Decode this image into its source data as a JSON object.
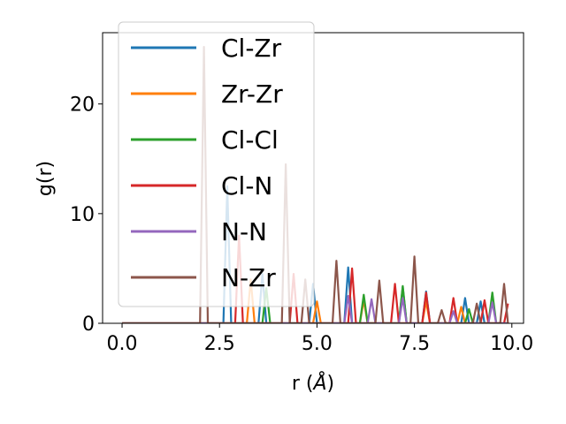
{
  "chart_data": {
    "type": "line",
    "xlabel": "r (Å)",
    "ylabel": "g(r)",
    "xlim": [
      -0.5,
      10.3
    ],
    "ylim": [
      0,
      26.5
    ],
    "xticks": [
      "0.0",
      "2.5",
      "5.0",
      "7.5",
      "10.0"
    ],
    "yticks": [
      "0",
      "10",
      "20"
    ],
    "legend_position": "upper-left",
    "grid": false,
    "series": [
      {
        "name": "Cl-Zr",
        "color": "#1f77b4",
        "x": [
          0,
          2.6,
          2.7,
          2.8,
          3.5,
          3.6,
          3.7,
          4.8,
          4.9,
          5.0,
          5.7,
          5.8,
          5.9,
          7.1,
          7.2,
          7.3,
          7.7,
          7.8,
          7.9,
          8.7,
          8.8,
          8.9,
          9.1,
          9.2,
          9.3,
          9.9
        ],
        "y": [
          0,
          0,
          12.5,
          0,
          0,
          4.5,
          0,
          0,
          3.6,
          0,
          0,
          5.1,
          0,
          0,
          3.3,
          0,
          0,
          2.9,
          0,
          0,
          2.3,
          0,
          0,
          2.0,
          0,
          0
        ]
      },
      {
        "name": "Zr-Zr",
        "color": "#ff7f0e",
        "x": [
          0,
          3.2,
          3.3,
          3.4,
          4.9,
          5.0,
          5.1,
          6.1,
          6.2,
          6.3,
          7.7,
          7.8,
          7.9,
          8.6,
          8.7,
          8.8,
          9.9
        ],
        "y": [
          0,
          0,
          4.0,
          0,
          0,
          2.0,
          0,
          0,
          2.1,
          0,
          0,
          2.0,
          0,
          0,
          1.5,
          0,
          0
        ]
      },
      {
        "name": "Cl-Cl",
        "color": "#2ca02c",
        "x": [
          0,
          3.6,
          3.7,
          3.8,
          6.1,
          6.2,
          6.3,
          7.1,
          7.2,
          7.3,
          8.8,
          8.9,
          9.0,
          9.4,
          9.5,
          9.6,
          9.9
        ],
        "y": [
          0,
          0,
          3.2,
          0,
          0,
          2.6,
          0,
          0,
          3.4,
          0,
          0,
          1.3,
          0,
          0,
          2.8,
          0,
          0
        ]
      },
      {
        "name": "Cl-N",
        "color": "#d62728",
        "x": [
          0,
          2.9,
          3.0,
          3.1,
          4.3,
          4.4,
          4.5,
          5.8,
          5.9,
          6.0,
          6.9,
          7.0,
          7.1,
          7.7,
          7.8,
          7.9,
          8.4,
          8.5,
          8.6,
          9.2,
          9.3,
          9.4,
          9.8,
          9.9
        ],
        "y": [
          0,
          0,
          8.0,
          0,
          0,
          4.5,
          0,
          0,
          5.0,
          0,
          0,
          3.6,
          0,
          0,
          2.8,
          0,
          0,
          2.3,
          0,
          0,
          2.1,
          0,
          0,
          1.8
        ]
      },
      {
        "name": "N-N",
        "color": "#9467bd",
        "x": [
          0,
          5.7,
          5.8,
          5.9,
          6.3,
          6.4,
          6.5,
          7.1,
          7.2,
          7.3,
          8.4,
          8.5,
          8.6,
          9.4,
          9.5,
          9.6,
          9.9
        ],
        "y": [
          0,
          0,
          2.5,
          0,
          0,
          2.2,
          0,
          0,
          2.3,
          0,
          0,
          1.1,
          0,
          0,
          1.9,
          0,
          0
        ]
      },
      {
        "name": "N-Zr",
        "color": "#8c564b",
        "x": [
          0,
          2.0,
          2.1,
          2.2,
          4.1,
          4.2,
          4.3,
          4.6,
          4.7,
          4.8,
          5.4,
          5.5,
          5.6,
          6.5,
          6.6,
          6.7,
          7.4,
          7.5,
          7.6,
          8.1,
          8.2,
          8.3,
          9.0,
          9.1,
          9.2,
          9.7,
          9.8,
          9.9
        ],
        "y": [
          0,
          0,
          25.2,
          0,
          0,
          14.5,
          0,
          0,
          4.0,
          0,
          0,
          5.7,
          0,
          0,
          3.9,
          0,
          0,
          6.1,
          0,
          0,
          1.2,
          0,
          0,
          1.8,
          0,
          0,
          3.6,
          0
        ]
      }
    ]
  }
}
